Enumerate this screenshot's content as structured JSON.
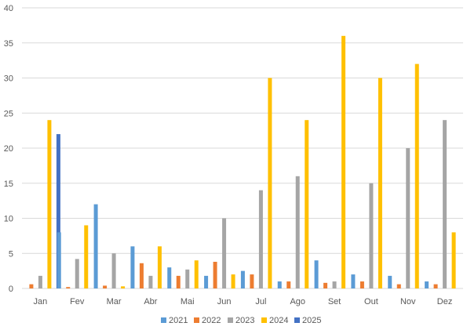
{
  "chart_data": {
    "type": "bar",
    "title": "",
    "xlabel": "",
    "ylabel": "",
    "ylim": [
      0,
      40
    ],
    "yticks": [
      0,
      5,
      10,
      15,
      20,
      25,
      30,
      35,
      40
    ],
    "grid": true,
    "legend_position": "bottom",
    "categories": [
      "Jan",
      "Fev",
      "Mar",
      "Abr",
      "Mai",
      "Jun",
      "Jul",
      "Ago",
      "Set",
      "Out",
      "Nov",
      "Dez"
    ],
    "series": [
      {
        "name": "2021",
        "color": "#5b9bd5",
        "values": [
          0,
          8,
          12,
          6,
          3,
          1.8,
          2.5,
          1,
          4,
          2,
          1.8,
          1
        ]
      },
      {
        "name": "2022",
        "color": "#ed7d31",
        "values": [
          0.6,
          0.2,
          0.4,
          3.6,
          1.8,
          3.8,
          2,
          1,
          0.8,
          1,
          0.6,
          0.6
        ]
      },
      {
        "name": "2023",
        "color": "#a5a5a5",
        "values": [
          1.8,
          4.2,
          5,
          1.8,
          2.7,
          10,
          14,
          16,
          1,
          15,
          20,
          24
        ]
      },
      {
        "name": "2024",
        "color": "#ffc000",
        "values": [
          24,
          9,
          0.3,
          6,
          4,
          2,
          30,
          24,
          36,
          30,
          32,
          8
        ]
      },
      {
        "name": "2025",
        "color": "#4472c4",
        "values": [
          22,
          0,
          0,
          0,
          0,
          0,
          0,
          0,
          0,
          0,
          0,
          0
        ]
      }
    ]
  }
}
